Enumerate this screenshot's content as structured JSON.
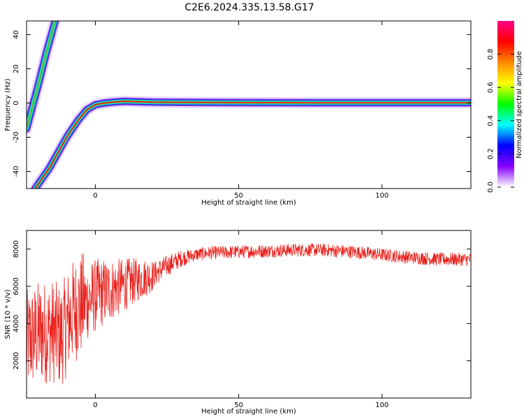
{
  "title": "C2E6.2024.335.13.58.G17",
  "colors": {
    "snr_line": "#e8221e",
    "ridge_core": "#e8221e",
    "ridge_halo": "#2ee86a",
    "ridge_outer": "#1a2ad8"
  },
  "chart_data": [
    {
      "type": "heatmap",
      "name": "spectrogram",
      "xlabel": "Height of straight line (km)",
      "ylabel": "Frequency (Hz)",
      "xlim": [
        -24,
        131
      ],
      "ylim": [
        -50,
        48
      ],
      "xticks": [
        0,
        50,
        100
      ],
      "yticks": [
        -40,
        -20,
        0,
        20,
        40
      ],
      "grid": false,
      "ridges": [
        {
          "x": [
            -24,
            -20,
            -17,
            -14
          ],
          "y": [
            -15,
            10,
            30,
            48
          ]
        },
        {
          "x": [
            -21,
            -16,
            -10,
            -6,
            -3,
            0,
            3,
            6,
            10,
            20,
            40,
            80,
            131
          ],
          "y": [
            -50,
            -38,
            -20,
            -10,
            -4,
            -1,
            0,
            0.5,
            1,
            0.5,
            0.3,
            0.2,
            0.2
          ]
        }
      ],
      "colorbar": {
        "label": "Normalized spectral amplitude",
        "range": [
          0,
          1
        ],
        "ticks": [
          0.0,
          0.2,
          0.4,
          0.6,
          0.8
        ],
        "tick_labels": [
          "0.0",
          "0.2",
          "0.4",
          "0.6",
          "0.8"
        ],
        "colormap": [
          "#ffffff",
          "#8800ff",
          "#0000ff",
          "#00ffff",
          "#00ff00",
          "#ffff00",
          "#ff8800",
          "#ff0000",
          "#ff0088"
        ]
      }
    },
    {
      "type": "line",
      "name": "snr",
      "xlabel": "Height of straight line (km)",
      "ylabel": "SNR (10 * v/v)",
      "xlim": [
        -24,
        131
      ],
      "ylim": [
        0,
        9000
      ],
      "xticks": [
        0,
        50,
        100
      ],
      "yticks": [
        2000,
        4000,
        6000,
        8000
      ],
      "grid": false,
      "series": [
        {
          "x": [
            -24,
            -20,
            -15,
            -12,
            -8,
            -4,
            0,
            5,
            9,
            12,
            16,
            20,
            25,
            30,
            35,
            40,
            50,
            60,
            70,
            80,
            90,
            100,
            110,
            120,
            131
          ],
          "y": [
            3000,
            3500,
            3600,
            3300,
            4600,
            5100,
            5500,
            5800,
            6000,
            6200,
            6400,
            6600,
            7100,
            7500,
            7700,
            7800,
            7850,
            7900,
            7950,
            7950,
            7850,
            7700,
            7550,
            7450,
            7450
          ]
        }
      ]
    }
  ]
}
